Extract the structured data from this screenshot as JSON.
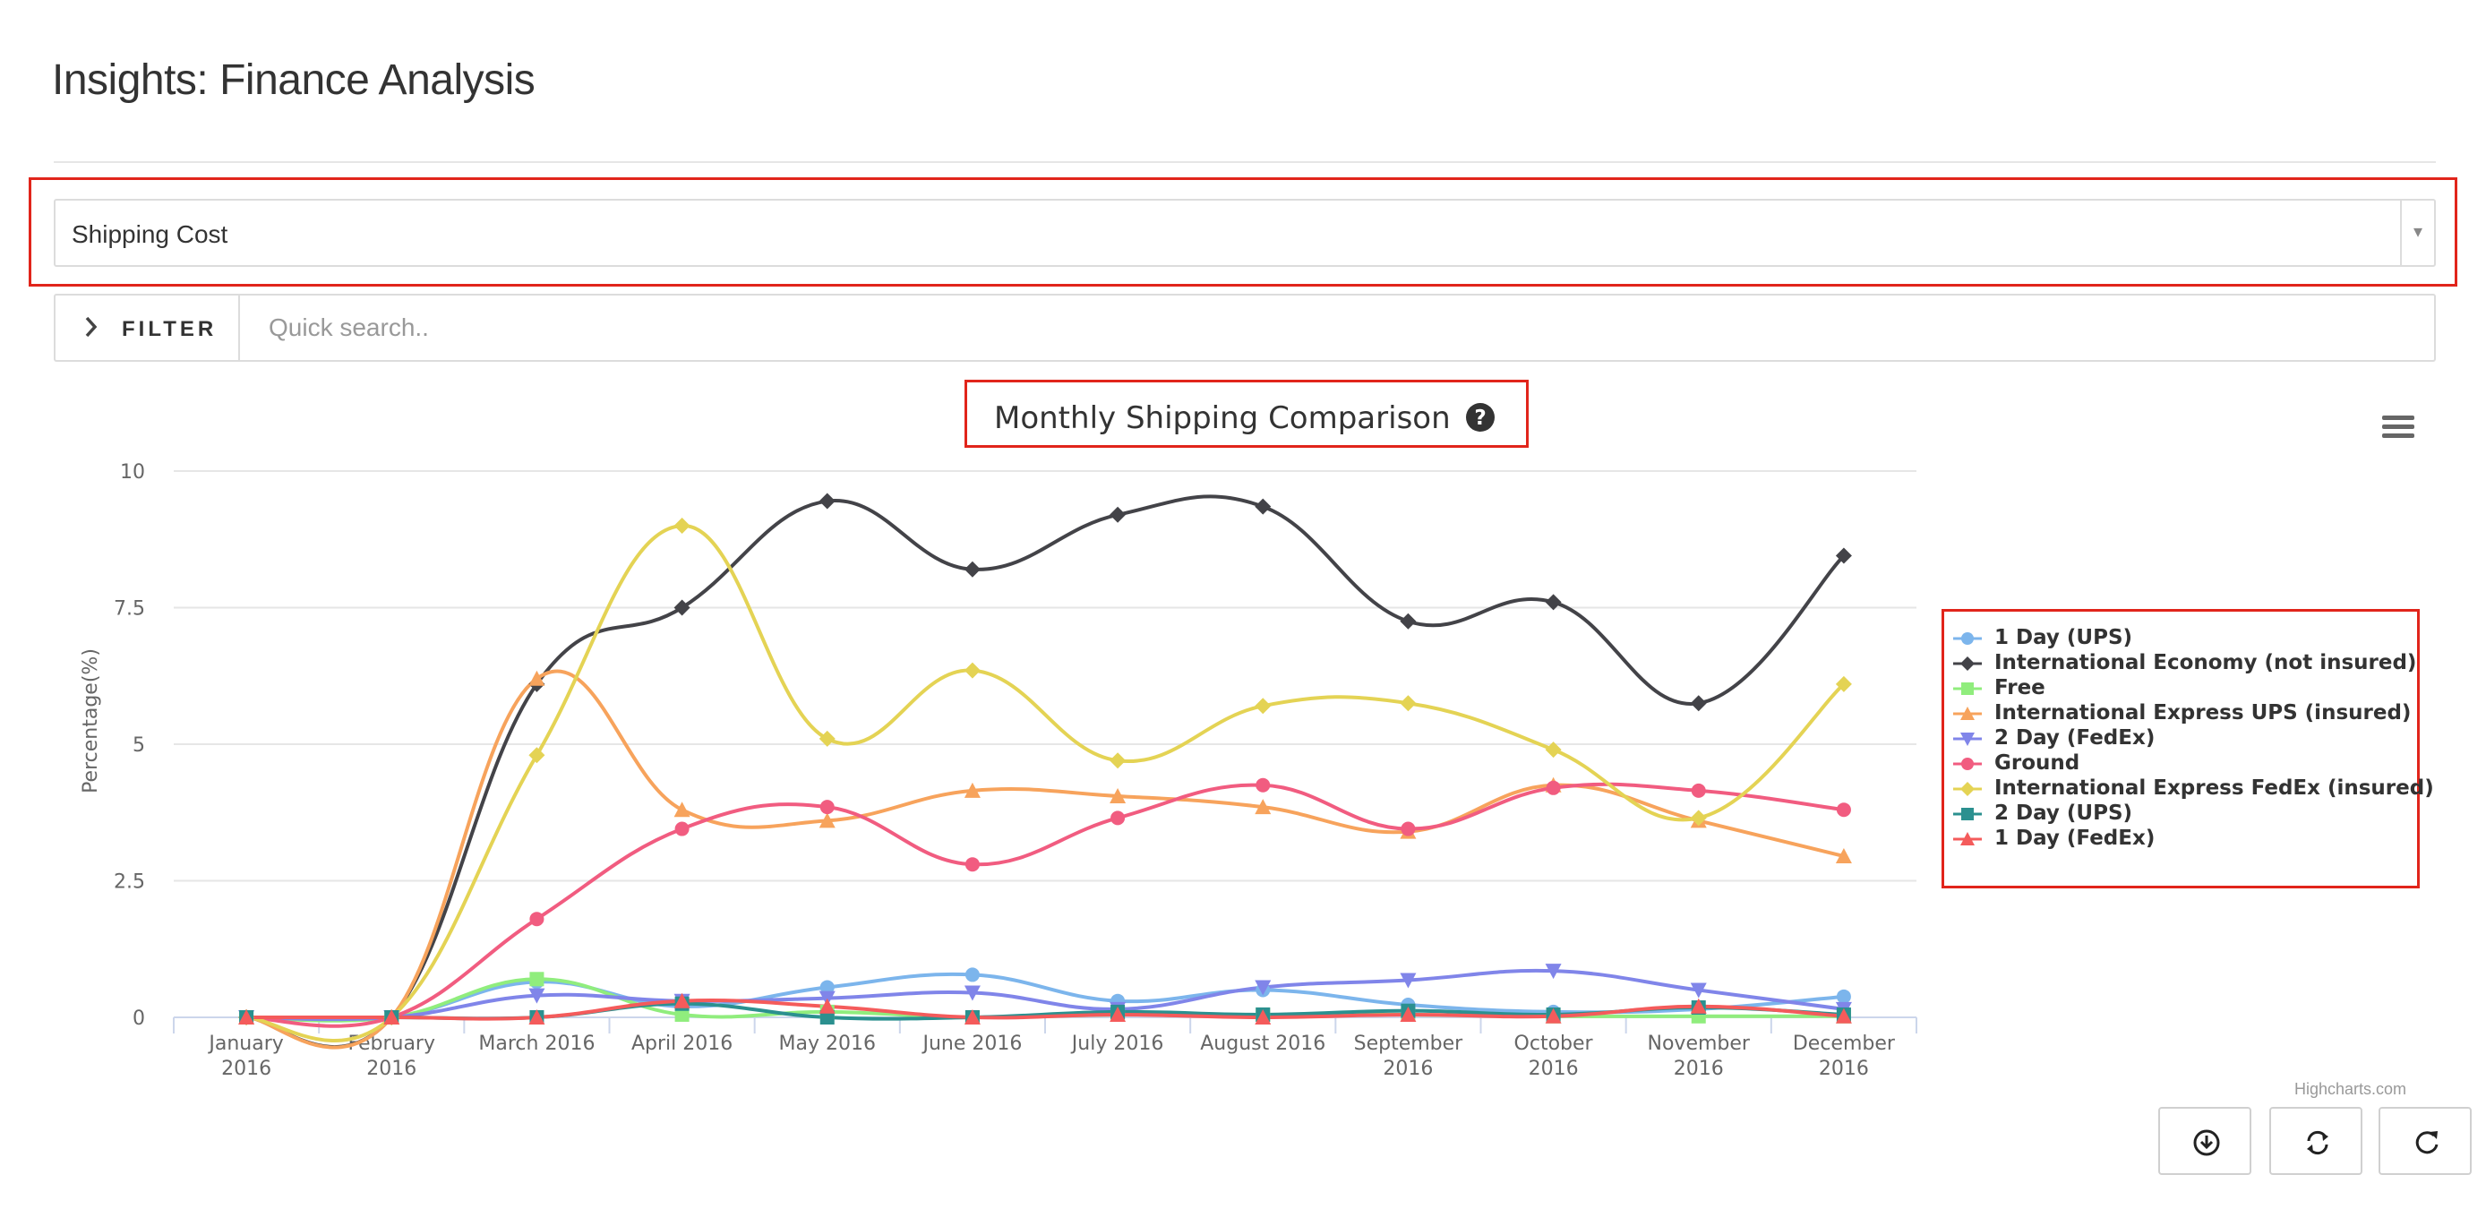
{
  "page": {
    "title": "Insights: Finance Analysis"
  },
  "metric_select": {
    "value": "Shipping Cost",
    "arrow_icon": "triangle-down-icon"
  },
  "filter": {
    "label": "FILTER",
    "icon": "chevron-right-icon",
    "search_placeholder": "Quick search.."
  },
  "chart_header": {
    "help_icon": "question-circle-icon",
    "menu_icon": "hamburger-menu-icon"
  },
  "credits": "Highcharts.com",
  "actions": [
    {
      "name": "download-button",
      "icon": "download-circle-icon"
    },
    {
      "name": "refresh-button",
      "icon": "swap-arrows-icon"
    },
    {
      "name": "reload-button",
      "icon": "reload-icon"
    }
  ],
  "colors": {
    "highlight": "#e1251b"
  },
  "chart_data": {
    "type": "line",
    "title": "Monthly Shipping Comparison",
    "ylabel": "Percentage(%)",
    "xlabel": "",
    "ylim": [
      0,
      10
    ],
    "yticks": [
      "0",
      "2.5",
      "5",
      "7.5",
      "10"
    ],
    "ytick_values": [
      0,
      2.5,
      5,
      7.5,
      10
    ],
    "grid": true,
    "legend": "right",
    "categories": [
      [
        "January",
        "2016"
      ],
      [
        "February",
        "2016"
      ],
      [
        "March 2016"
      ],
      [
        "April 2016"
      ],
      [
        "May 2016"
      ],
      [
        "June 2016"
      ],
      [
        "July 2016"
      ],
      [
        "August 2016"
      ],
      [
        "September",
        "2016"
      ],
      [
        "October",
        "2016"
      ],
      [
        "November",
        "2016"
      ],
      [
        "December",
        "2016"
      ]
    ],
    "series": [
      {
        "name": "1 Day (UPS)",
        "color": "#7cb5ec",
        "marker": "circle",
        "values": [
          0,
          0,
          0.65,
          0.2,
          0.55,
          0.78,
          0.3,
          0.5,
          0.23,
          0.1,
          0.15,
          0.38
        ]
      },
      {
        "name": "International Economy (not insured)",
        "color": "#434348",
        "marker": "diamond",
        "values": [
          0,
          0,
          6.1,
          7.5,
          9.45,
          8.2,
          9.2,
          9.35,
          7.25,
          7.6,
          5.75,
          8.45
        ]
      },
      {
        "name": "Free",
        "color": "#90ed7d",
        "marker": "square",
        "values": [
          0,
          0,
          0.7,
          0.05,
          0.1,
          0,
          0.05,
          0.05,
          0.05,
          0.02,
          0.02,
          0.02
        ]
      },
      {
        "name": "International Express UPS (insured)",
        "color": "#f7a35c",
        "marker": "triangle",
        "values": [
          0,
          0,
          6.2,
          3.8,
          3.6,
          4.15,
          4.05,
          3.85,
          3.4,
          4.25,
          3.6,
          2.95
        ]
      },
      {
        "name": "2 Day (FedEx)",
        "color": "#8085e9",
        "marker": "triangle-down",
        "values": [
          0,
          0,
          0.4,
          0.3,
          0.35,
          0.45,
          0.15,
          0.55,
          0.68,
          0.85,
          0.5,
          0.15
        ]
      },
      {
        "name": "Ground",
        "color": "#f15c80",
        "marker": "circle",
        "values": [
          0,
          0,
          1.8,
          3.45,
          3.85,
          2.8,
          3.65,
          4.25,
          3.45,
          4.2,
          4.15,
          3.8
        ]
      },
      {
        "name": "International Express FedEx (insured)",
        "color": "#e4d354",
        "marker": "diamond",
        "values": [
          0,
          0,
          4.8,
          9.0,
          5.1,
          6.35,
          4.7,
          5.7,
          5.75,
          4.9,
          3.65,
          6.1
        ]
      },
      {
        "name": "2 Day (UPS)",
        "color": "#2b908f",
        "marker": "square",
        "values": [
          0,
          0,
          0,
          0.25,
          0,
          0,
          0.1,
          0.05,
          0.12,
          0.05,
          0.18,
          0.05
        ]
      },
      {
        "name": "1 Day (FedEx)",
        "color": "#f45b5b",
        "marker": "triangle",
        "values": [
          0,
          0,
          0,
          0.3,
          0.2,
          0,
          0.05,
          0,
          0.05,
          0.02,
          0.2,
          0.02
        ]
      }
    ]
  }
}
